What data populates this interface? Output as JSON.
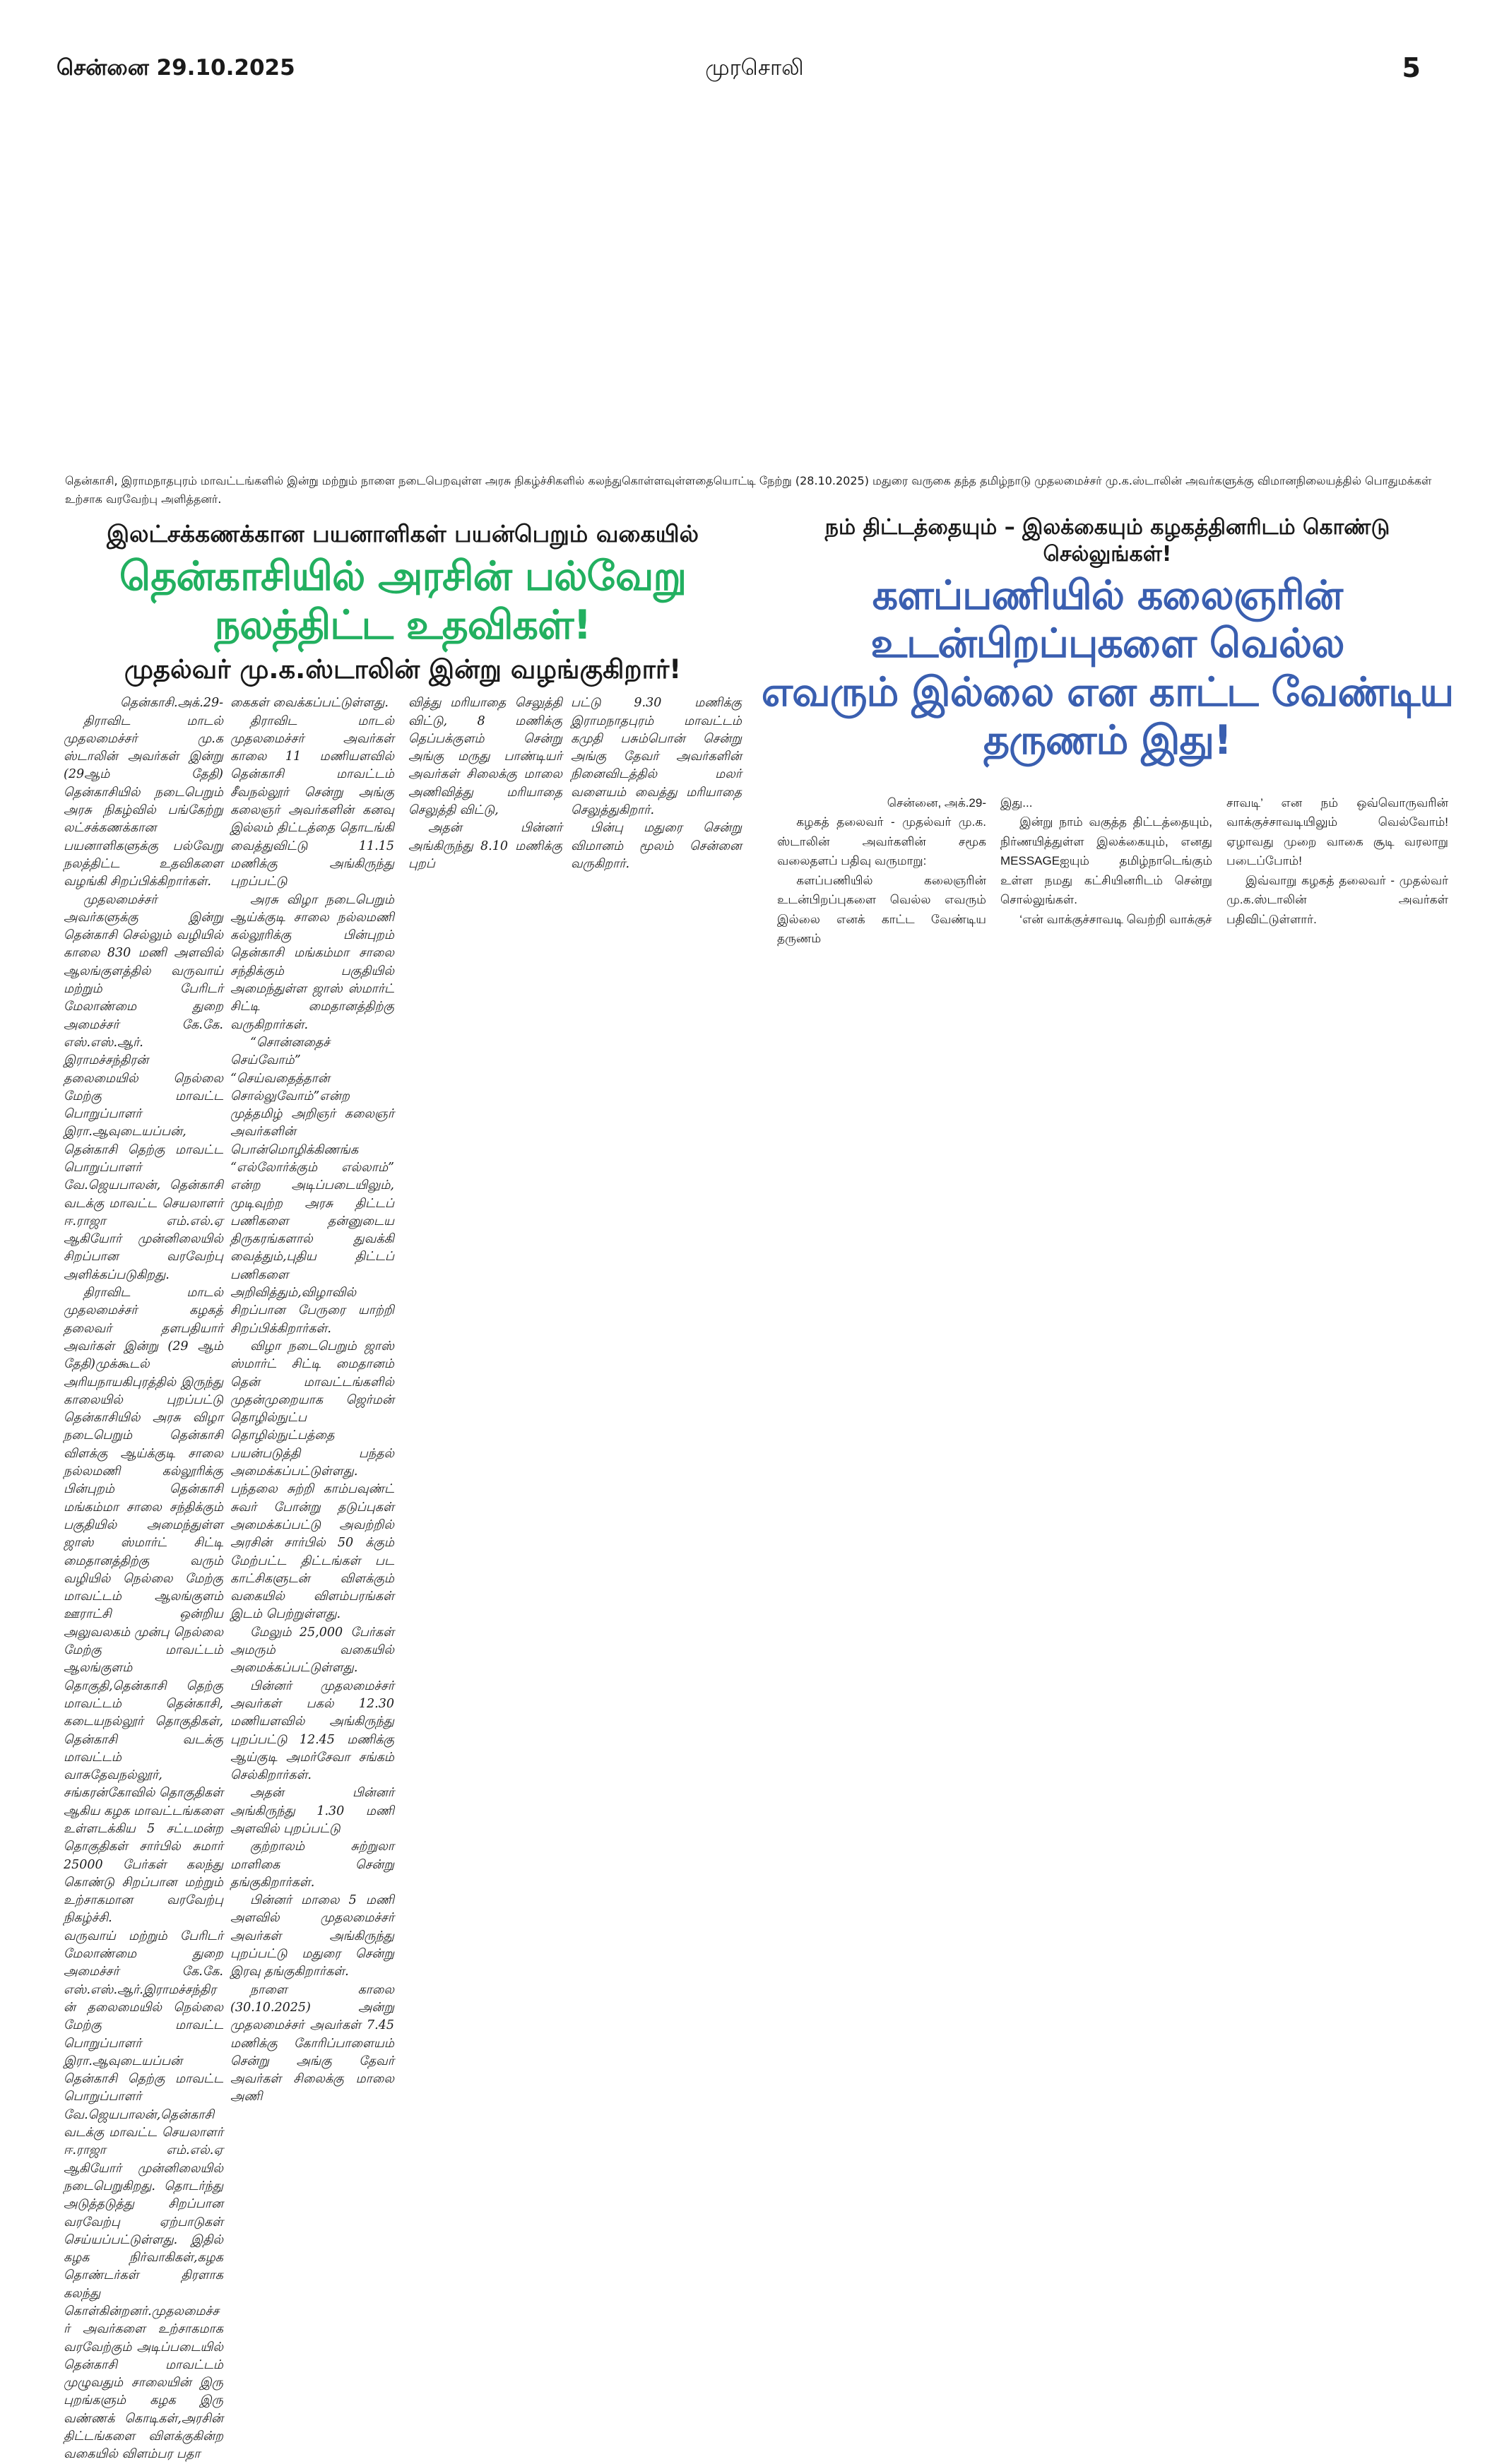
{
  "header": {
    "date": "சென்னை 29.10.2025",
    "title": "முரசொலி",
    "page": "5"
  },
  "caption": "தென்காசி, இராமநாதபுரம் மாவட்டங்களில் இன்று மற்றும் நாளை நடைபெறவுள்ள அரசு நிகழ்ச்சிகளில் கலந்துகொள்ளவுள்ளதையொட்டி நேற்று (28.10.2025) மதுரை வருகை தந்த தமிழ்நாடு முதலமைச்சர் மு.க.ஸ்டாலின் அவர்களுக்கு விமானநிலையத்தில் பொதுமக்கள் உற்சாக வரவேற்பு அளித்தனர்.",
  "left_article": {
    "kicker": "இலட்சக்கணக்கான பயனாளிகள் பயன்பெறும் வகையில்",
    "headline": "தென்காசியில் அரசின் பல்வேறு நலத்திட்ட உதவிகள்!",
    "subheadline": "முதல்வர் மு.க.ஸ்டாலின் இன்று வழங்குகிறார்!",
    "headline_color": "#22b060",
    "columns": [
      [
        {
          "t": "தென்காசி.அக்.29-",
          "k": "dl"
        },
        {
          "t": "திராவிட மாடல் முதலமைச்சர் மு.க ஸ்டாலின் அவர்கள் இன்று (29ஆம் தேதி) தென்காசியில் நடைபெறும் அரசு நிகழ்வில் பங்கேற்று லட்சக்கணக்கான பயனாளிகளுக்கு பல்வேறு நலத்திட்ட உதவிகளை வழங்கி சிறப்பிக்கிறார்கள்."
        },
        {
          "t": "முதலமைச்சர் அவர்களுக்கு இன்று தென்காசி செல்லும் வழியில் காலை 830 மணி அளவில் ஆலங்குளத்தில் வருவாய் மற்றும் பேரிடர் மேலாண்மை துறை அமைச்சர் கே.கே. எஸ்.எஸ்.ஆர். இராமச்சந்திரன் தலைமையில் நெல்லை மேற்கு மாவட்ட பொறுப்பாளர் இரா.ஆவுடையப்பன், தென்காசி தெற்கு மாவட்ட பொறுப்பாளர் வே.ஜெயபாலன், தென்காசி வடக்கு மாவட்ட செயலாளர் ஈ.ராஜா எம்.எல்.ஏ ஆகியோர் முன்னிலையில் சிறப்பான வரவேற்பு அளிக்கப்படுகிறது."
        },
        {
          "t": "திராவிட மாடல் முதலமைச்சர் கழகத் தலைவர் தளபதியார் அவர்கள் இன்று (29 ஆம் தேதி)முக்கூடல் அரியநாயகிபுரத்தில் இருந்து காலையில் புறப்பட்டு தென்காசியில் அரசு விழா நடைபெறும் தென்காசி விளக்கு ஆய்க்குடி சாலை நல்லமணி கல்லூரிக்கு பின்புறம் தென்காசி மங்கம்மா சாலை சந்திக்கும் பகுதியில் அமைந்துள்ள ஜாஸ் ஸ்மார்ட் சிட்டி மைதானத்திற்கு வரும் வழியில் நெல்லை மேற்கு மாவட்டம் ஆலங்குளம் ஊராட்சி ஒன்றிய அலுவலகம் முன்பு நெல்லை மேற்கு மாவட்டம் ஆலங்குளம் தொகுதி,தென்காசி தெற்கு மாவட்டம் தென்காசி, கடையநல்லூர் தொகுதிகள், தென்காசி வடக்கு மாவட்டம் வாசுதேவநல்லூர், சங்கரன்கோவில் தொகுதிகள் ஆகிய கழக மாவட்டங்களை உள்ளடக்கிய 5 சட்டமன்ற தொகுதிகள் சார்பில் சுமார் 25000 பேர்கள் கலந்து கொண்டு சிறப்பான மற்றும் உற்சாகமான வரவேற்பு நிகழ்ச்சி."
        },
        {
          "t": "வருவாய் மற்றும் பேரிடர் மேலாண்மை துறை அமைச்சர் கே.கே. எஸ்.எஸ்.ஆர்.இராமச்சந்திரன் தலைமையில் நெல்லை மேற்கு மாவட்ட பொறுப்பாளர் இரா.ஆவுடையப்பன் தென்காசி தெற்கு மாவட்ட பொறுப்பாளர் வே.ஜெயபாலன்,தென்காசி வடக்கு மாவட்ட செயலாளர் ஈ.ராஜா எம்.எல்.ஏ ஆகியோர் முன்னிலையில் நடைபெறுகிறது. தொடர்ந்து அடுத்தடுத்து சிறப்பான வரவேற்பு ஏற்பாடுகள் செய்யப்பட்டுள்ளது. இதில் கழக நிர்வாகிகள்,கழக தொண்டர்கள் திரளாக கலந்து கொள்கின்றனர்.முதலமைச்சர் அவர்களை உற்சாகமாக வரவேற்கும் அடிப்படையில் தென்காசி மாவட்டம் முழுவதும் சாலையின் இரு புறங்களும் கழக இரு வண்ணக் கொடிகள்,அரசின் திட்டங்களை விளக்குகின்ற வகையில் விளம்பர பதா",
          "k": "ni"
        }
      ],
      [
        {
          "t": "கைகள் வைக்கப்பட்டுள்ளது.",
          "k": "ni"
        },
        {
          "t": "திராவிட மாடல் முதலமைச்சர் அவர்கள் காலை 11 மணியளவில் தென்காசி மாவட்டம் சீவநல்லூர் சென்று அங்கு கலைஞர் அவர்களின் கனவு இல்லம் திட்டத்தை தொடங்கி வைத்துவிட்டு 11.15 மணிக்கு அங்கிருந்து புறப்பட்டு"
        },
        {
          "t": "அரசு விழா நடைபெறும் ஆய்க்குடி சாலை நல்லமணி கல்லூரிக்கு பின்புறம் தென்காசி மங்கம்மா சாலை சந்திக்கும் பகுதியில் அமைந்துள்ள ஜாஸ் ஸ்மார்ட் சிட்டி மைதானத்திற்கு வருகிறார்கள்."
        },
        {
          "t": "“சொன்னதைச் செய்வோம்” “செய்வதைத்தான் சொல்லுவோம்”என்ற முத்தமிழ் அறிஞர் கலைஞர் அவர்களின் பொன்மொழிக்கிணங்க “எல்லோர்க்கும் எல்லாம்” என்ற அடிப்படையிலும், முடிவுற்ற அரசு திட்டப் பணிகளை தன்னுடைய திருகரங்களால் துவக்கி வைத்தும்,புதிய திட்டப் பணிகளை அறிவித்தும்,விழாவில் சிறப்பான பேருரை யாற்றி சிறப்பிக்கிறார்கள்."
        },
        {
          "t": "விழா நடைபெறும் ஜாஸ் ஸ்மார்ட் சிட்டி மைதானம் தென் மாவட்டங்களில் முதன்முறையாக ஜெர்மன் தொழில்நுட்ப தொழில்நுட்பத்தை பயன்படுத்தி பந்தல் அமைக்கப்பட்டுள்ளது. பந்தலை சுற்றி காம்பவுண்ட் சுவர் போன்று தடுப்புகள் அமைக்கப்பட்டு அவற்றில் அரசின் சார்பில் 50 க்கும் மேற்பட்ட திட்டங்கள் பட காட்சிகளுடன் விளக்கும் வகையில் விளம்பரங்கள் இடம் பெற்றுள்ளது."
        },
        {
          "t": "மேலும் 25,000 பேர்கள் அமரும் வகையில் அமைக்கப்பட்டுள்ளது."
        },
        {
          "t": "பின்னர் முதலமைச்சர் அவர்கள் பகல் 12.30 மணியளவில் அங்கிருந்து புறப்பட்டு 12.45 மணிக்கு ஆய்குடி அமர்சேவா சங்கம் செல்கிறார்கள்."
        },
        {
          "t": "அதன் பின்னர் அங்கிருந்து 1.30 மணி அளவில் புறப்பட்டு"
        },
        {
          "t": "குற்றாலம் சுற்றுலா மாளிகை சென்று தங்குகிறார்கள்."
        },
        {
          "t": "பின்னர் மாலை 5 மணி அளவில் முதலமைச்சர் அவர்கள் அங்கிருந்து புறப்பட்டு மதுரை சென்று இரவு தங்குகிறார்கள்."
        },
        {
          "t": "நாளை காலை (30.10.2025) அன்று முதலமைச்சர் அவர்கள் 7.45 மணிக்கு கோரிப்பாளையம் சென்று அங்கு தேவர் அவர்கள் சிலைக்கு மாலை அணி"
        }
      ],
      [
        {
          "t": "வித்து மரியாதை செலுத்தி விட்டு, 8 மணிக்கு தெப்பக்குளம் சென்று அங்கு மருது பாண்டியர் அவர்கள் சிலைக்கு மாலை அணிவித்து மரியாதை செலுத்தி விட்டு,",
          "k": "ni"
        },
        {
          "t": "அதன் பின்னர் அங்கிருந்து 8.10 மணிக்கு புறப்"
        }
      ],
      [
        {
          "t": "பட்டு 9.30 மணிக்கு இராமநாதபுரம் மாவட்டம் கமுதி பசும்பொன் சென்று அங்கு தேவர் அவர்களின் நினைவிடத்தில் மலர் வளையம் வைத்து மரியாதை செலுத்துகிறார்.",
          "k": "ni"
        },
        {
          "t": "பின்பு மதுரை சென்று விமானம் மூலம் சென்னை வருகிறார்."
        }
      ]
    ]
  },
  "right_article": {
    "kicker": "நம் திட்டத்தையும் – இலக்கையும் கழகத்தினரிடம் கொண்டு செல்லுங்கள்!",
    "headline_line1": "களப்பணியில் கலைஞரின் உடன்பிறப்புகளை வெல்ல",
    "headline_line2": "எவரும் இல்லை என காட்ட வேண்டிய தருணம் இது!",
    "headline_color": "#3a5fb0",
    "columns": [
      [
        {
          "t": "சென்னை, அக்.29-",
          "k": "dl"
        },
        {
          "t": "கழகத் தலைவர் - முதல்வர் மு.க. ஸ்டாலின் அவர்களின் சமூக வலைதளப் பதிவு வருமாறு:"
        },
        {
          "t": "களப்பணியில் கலைஞரின் உடன்பிறப்புகளை வெல்ல எவரும் இல்லை எனக் காட்ட வேண்டிய தருணம்"
        }
      ],
      [
        {
          "t": "இது...",
          "k": "ni"
        },
        {
          "t": "இன்று நாம் வகுத்த திட்டத்தையும், நிர்ணயித்துள்ள இலக்கையும், எனது MESSAGEஐயும் தமிழ்நாடெங்கும் உள்ள நமது கட்சியினரிடம் சென்று சொல்லுங்கள்."
        },
        {
          "t": "‘என் வாக்குச்சாவடி வெற்றி வாக்குச்"
        }
      ],
      [
        {
          "t": "சாவடி’ என நம் ஒவ்வொருவரின் வாக்குச்சாவடியிலும் வெல்வோம்! ஏழாவது முறை வாகை சூடி வரலாறு படைப்போம்!",
          "k": "ni"
        },
        {
          "t": "இவ்வாறு கழகத் தலைவர் - முதல்வர் மு.க.ஸ்டாலின் அவர்கள் பதிவிட்டுள்ளார்."
        }
      ]
    ]
  }
}
